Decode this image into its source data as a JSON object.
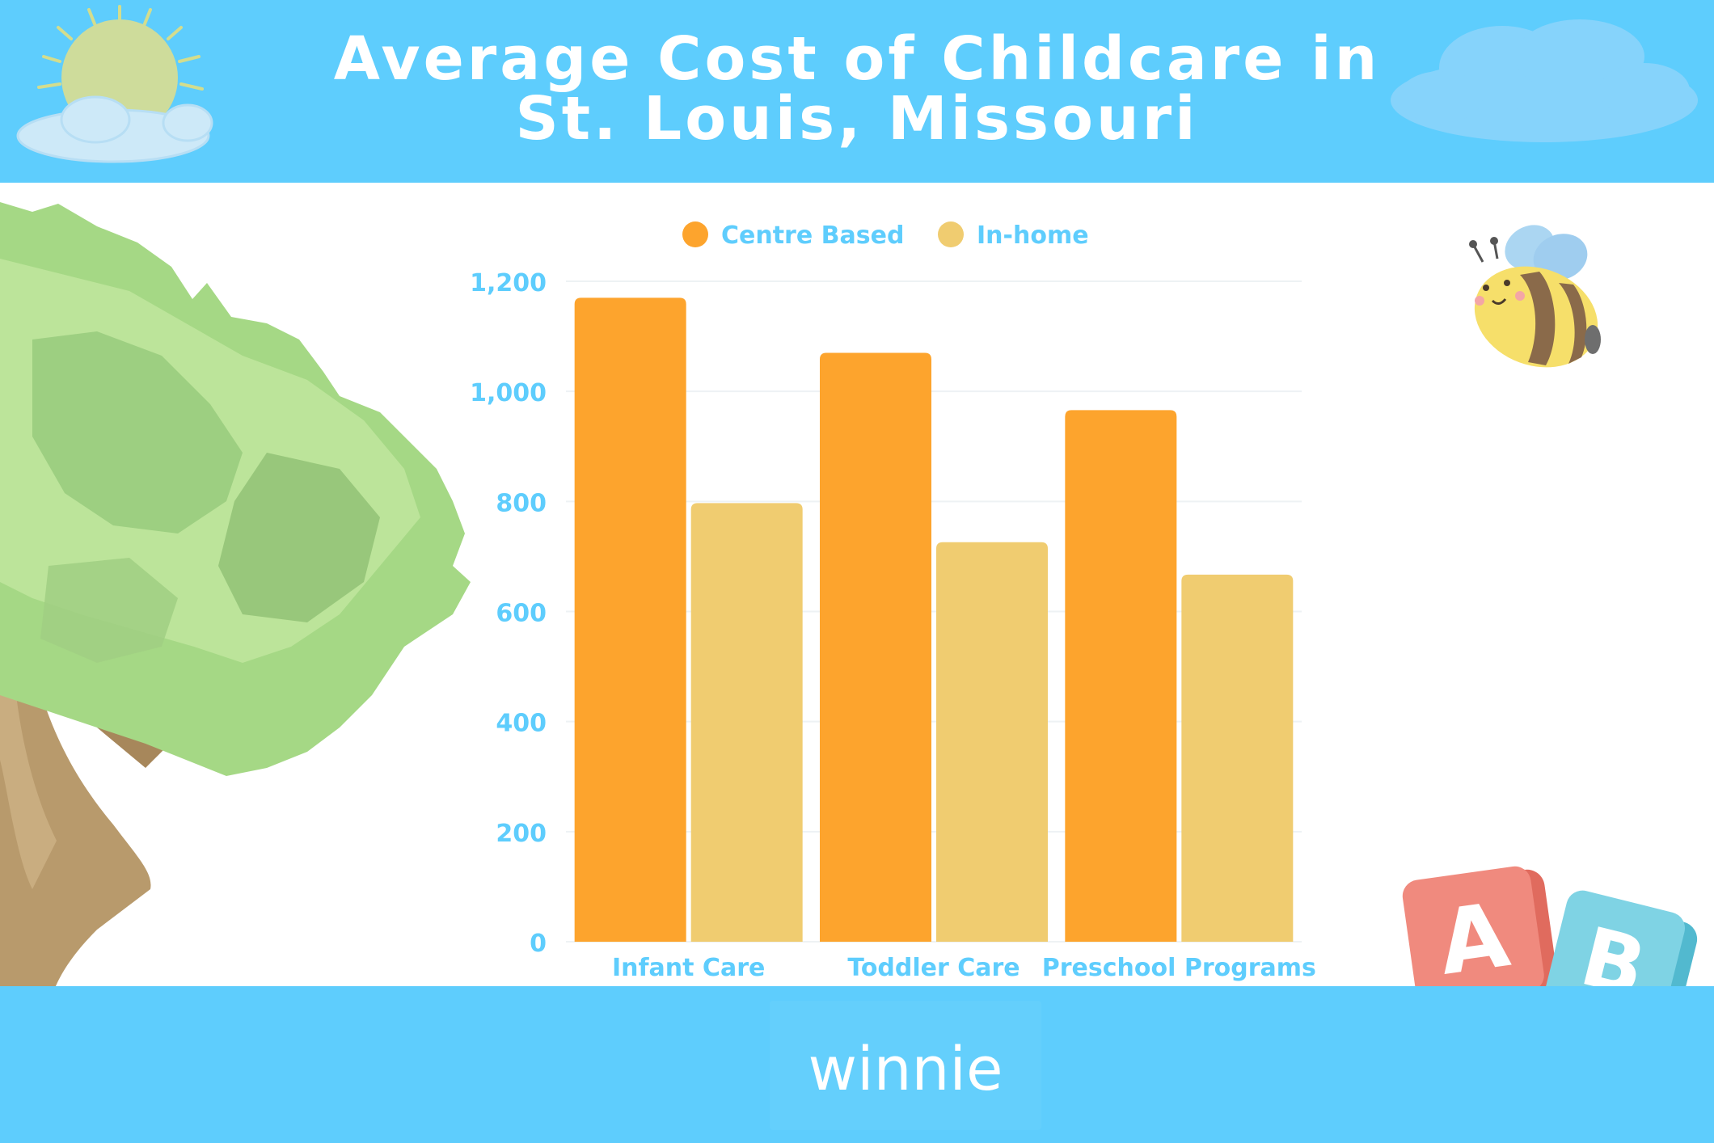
{
  "header": {
    "title_line1": "Average Cost of Childcare in",
    "title_line2": "St. Louis, Missouri",
    "background": "#5ecdfd"
  },
  "footer": {
    "logo": "winnie",
    "background": "#5ecdfd"
  },
  "decorations": [
    "sun-icon",
    "cloud-icon",
    "tree-illustration",
    "bee-icon",
    "abc-blocks-icon"
  ],
  "chart_data": {
    "type": "bar",
    "categories": [
      "Infant Care",
      "Toddler Care",
      "Preschool Programs"
    ],
    "series": [
      {
        "name": "Centre Based",
        "values": [
          1170,
          1070,
          966
        ],
        "color": "#fda42d"
      },
      {
        "name": "In-home",
        "values": [
          797,
          726,
          667
        ],
        "color": "#f0cc70"
      }
    ],
    "y_ticks": [
      "0",
      "200",
      "400",
      "600",
      "800",
      "1,000",
      "1,200"
    ],
    "ylim": [
      0,
      1200
    ],
    "grid": true,
    "legend_position": "top-center",
    "label_color": "#5ecdfd"
  }
}
